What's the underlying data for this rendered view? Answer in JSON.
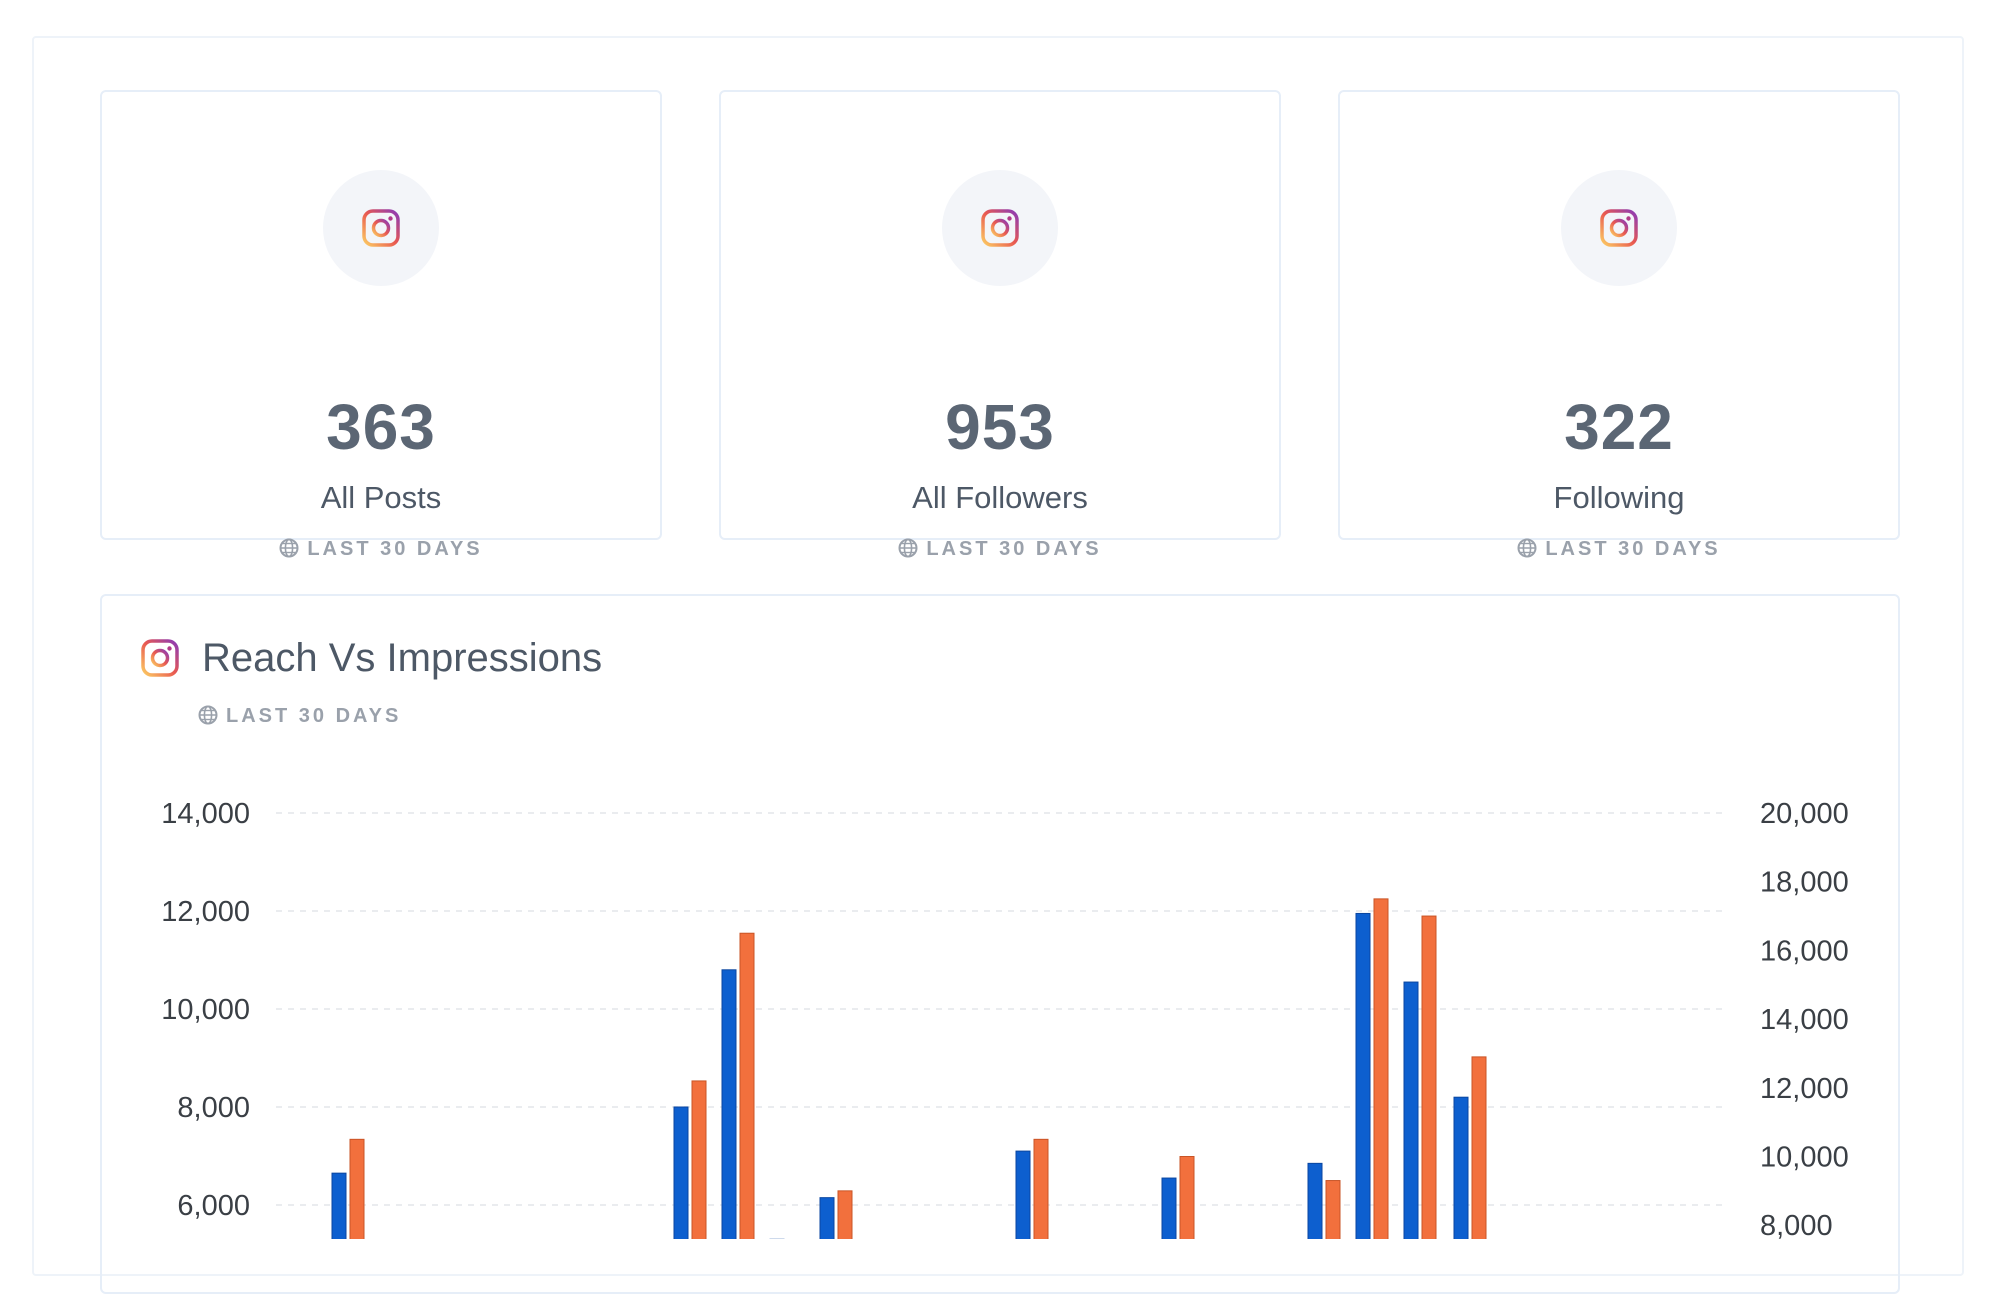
{
  "stats": [
    {
      "value": "363",
      "label": "All Posts",
      "period": "LAST 30 DAYS"
    },
    {
      "value": "953",
      "label": "All Followers",
      "period": "LAST 30 DAYS"
    },
    {
      "value": "322",
      "label": "Following",
      "period": "LAST 30 DAYS"
    }
  ],
  "chart_card": {
    "title": "Reach Vs Impressions",
    "period": "LAST 30 DAYS"
  },
  "icons": {
    "stat_icon": "instagram-icon",
    "period_icon": "globe-icon"
  },
  "colors": {
    "reach": "#0d5fcf",
    "impressions": "#f2703d",
    "instagram_gradient": [
      "#8a3ab9",
      "#e95950",
      "#fccc63"
    ]
  },
  "chart_data": {
    "type": "bar",
    "left_axis": {
      "ylim": [
        4000,
        14000
      ],
      "ticks": [
        "14,000",
        "12,000",
        "10,000",
        "8,000",
        "6,000"
      ],
      "tick_values": [
        14000,
        12000,
        10000,
        8000,
        6000
      ]
    },
    "right_axis": {
      "ylim": [
        2000,
        20000
      ],
      "ticks": [
        "20,000",
        "18,000",
        "16,000",
        "14,000",
        "12,000",
        "10,000",
        "8,000"
      ],
      "tick_values": [
        20000,
        18000,
        16000,
        14000,
        12000,
        10000,
        8000
      ]
    },
    "grid": true,
    "series": [
      {
        "axis": "left",
        "values": [
          6650,
          8000,
          10800,
          5300,
          6150,
          7100,
          6550,
          6850,
          11950,
          10550,
          8200
        ]
      },
      {
        "axis": "right",
        "values": [
          10500,
          12200,
          16500,
          6700,
          9000,
          10500,
          10000,
          9300,
          17500,
          17000,
          12900
        ]
      }
    ]
  }
}
